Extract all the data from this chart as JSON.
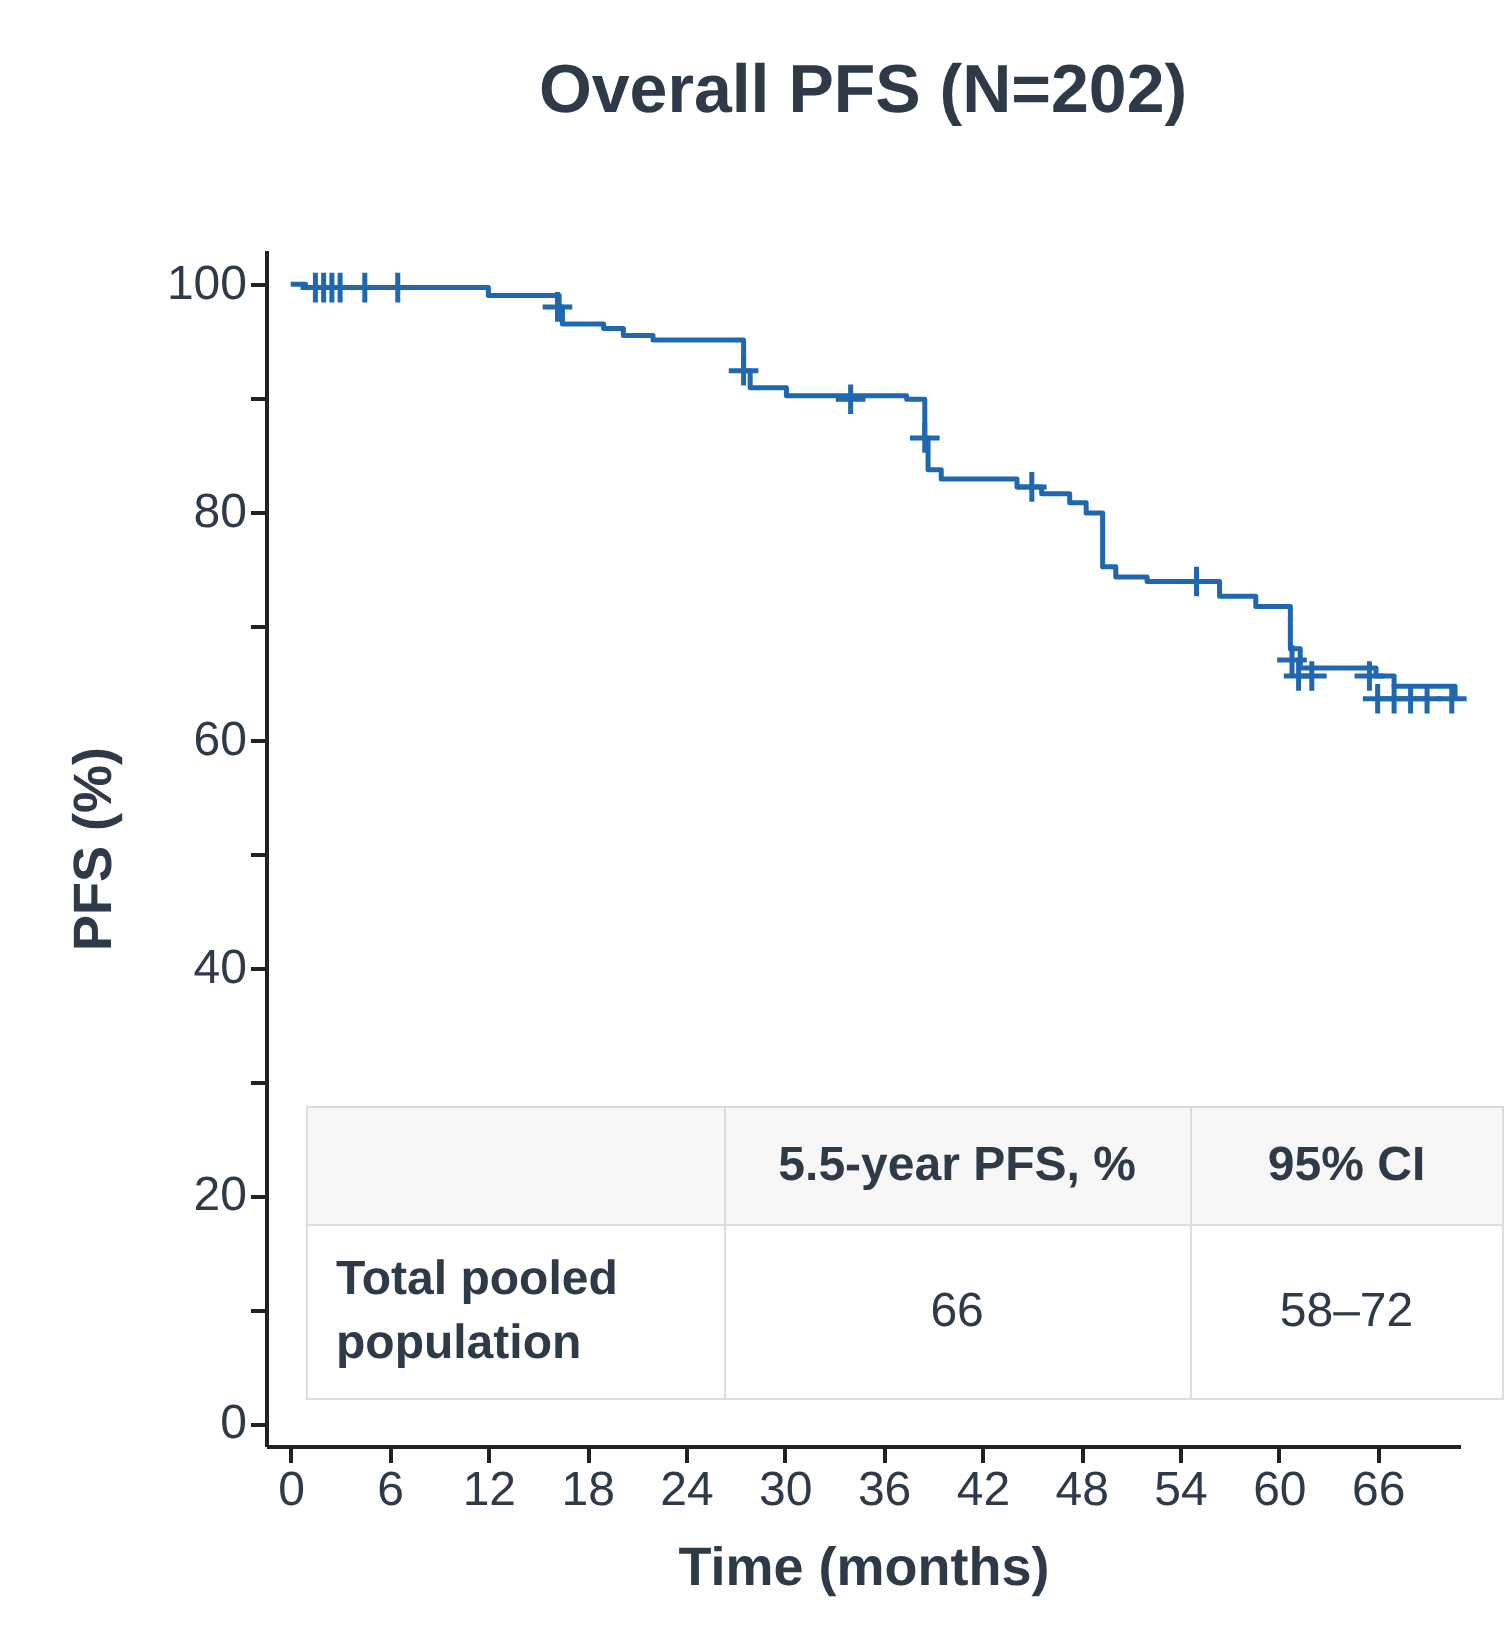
{
  "chart_data": {
    "type": "step",
    "title": "Overall PFS (N=202)",
    "xlabel": "Time (months)",
    "ylabel": "PFS (%)",
    "xlim": [
      -1.5,
      71
    ],
    "ylim": [
      -2,
      103
    ],
    "xticks": [
      0,
      6,
      12,
      18,
      24,
      30,
      36,
      42,
      48,
      54,
      60,
      66
    ],
    "yticks": [
      0,
      {
        "value": 10,
        "label": null
      },
      20,
      {
        "value": 30,
        "label": null
      },
      40,
      {
        "value": 50,
        "label": null
      },
      60,
      {
        "value": 70,
        "label": null
      },
      80,
      {
        "value": 90,
        "label": null
      },
      100
    ],
    "series": [
      {
        "color": "#1f68b0",
        "x": [
          0,
          0.9,
          12.0,
          16.3,
          16.5,
          19.0,
          20.2,
          22.0,
          27.5,
          27.9,
          30.1,
          37.4,
          38.5,
          38.7,
          39.5,
          44.1,
          45.6,
          47.3,
          48.3,
          49.3,
          50.1,
          52.0,
          56.4,
          58.6,
          60.7,
          61.3,
          65.9,
          67.0,
          70.7
        ],
        "values": [
          100,
          99.7,
          99.0,
          98.0,
          96.5,
          96.1,
          95.5,
          95.1,
          92.4,
          90.9,
          90.2,
          89.9,
          86.5,
          83.7,
          82.9,
          82.2,
          81.6,
          80.8,
          79.9,
          75.2,
          74.3,
          73.9,
          72.6,
          71.7,
          68.0,
          66.3,
          65.6,
          64.7,
          63.6
        ]
      },
      {
        "type": "scatter",
        "color": "#1f68b0",
        "marker": "cross",
        "x": [
          1.5,
          2.0,
          2.5,
          3.0,
          4.5,
          6.5,
          16.2,
          27.5,
          34.0,
          38.5,
          45.0,
          55.0,
          60.8,
          61.2,
          62.0,
          65.5,
          66.0,
          67.0,
          68.0,
          69.0,
          70.5
        ],
        "values": [
          99.7,
          99.7,
          99.7,
          99.7,
          99.7,
          99.7,
          98.0,
          92.4,
          89.9,
          86.5,
          82.2,
          73.9,
          67.0,
          65.6,
          65.6,
          65.6,
          63.6,
          63.6,
          63.6,
          63.6,
          63.6
        ]
      }
    ],
    "annotations": [
      "5.5-year PFS, %",
      "95% CI",
      "Total pooled population",
      "66",
      "58–72"
    ]
  }
}
